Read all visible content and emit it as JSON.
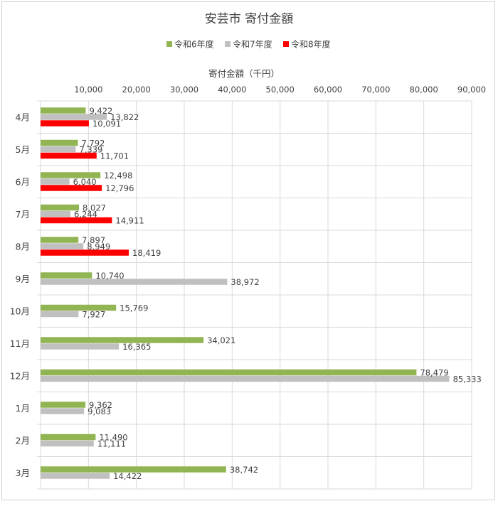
{
  "chart_data": {
    "type": "bar",
    "orientation": "horizontal",
    "title": "安芸市 寄付金額",
    "xlabel": "寄付金額（千円）",
    "ylabel": "",
    "xlim": [
      0,
      90000
    ],
    "x_ticks": [
      "10,000",
      "20,000",
      "30,000",
      "40,000",
      "50,000",
      "60,000",
      "70,000",
      "80,000",
      "90,000"
    ],
    "grid": true,
    "legend_position": "top",
    "categories": [
      "4月",
      "5月",
      "6月",
      "7月",
      "8月",
      "9月",
      "10月",
      "11月",
      "12月",
      "1月",
      "2月",
      "3月"
    ],
    "series": [
      {
        "name": "令和6年度",
        "color": "#92b554",
        "values": [
          9422,
          7792,
          12498,
          8027,
          7897,
          10740,
          15769,
          34021,
          78479,
          9362,
          11490,
          38742
        ],
        "labels": [
          "9,422",
          "7,792",
          "12,498",
          "8,027",
          "7,897",
          "10,740",
          "15,769",
          "34,021",
          "78,479",
          "9,362",
          "11,490",
          "38,742"
        ]
      },
      {
        "name": "令和7年度",
        "color": "#c0c0c0",
        "values": [
          13822,
          7339,
          6040,
          6244,
          8949,
          38972,
          7927,
          16365,
          85333,
          9083,
          11111,
          14422
        ],
        "labels": [
          "13,822",
          "7,339",
          "6,040",
          "6,244",
          "8,949",
          "38,972",
          "7,927",
          "16,365",
          "85,333",
          "9,083",
          "11,111",
          "14,422"
        ]
      },
      {
        "name": "令和8年度",
        "color": "#ff0000",
        "values": [
          10091,
          11701,
          12796,
          14911,
          18419,
          null,
          null,
          null,
          null,
          null,
          null,
          null
        ],
        "labels": [
          "10,091",
          "11,701",
          "12,796",
          "14,911",
          "18,419",
          null,
          null,
          null,
          null,
          null,
          null,
          null
        ]
      }
    ]
  }
}
